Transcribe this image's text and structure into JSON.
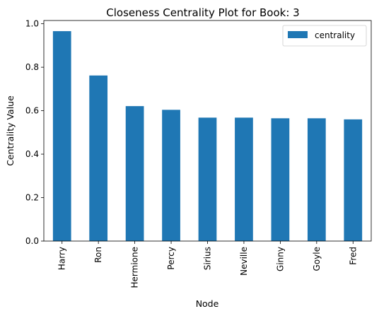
{
  "chart_data": {
    "type": "bar",
    "title": "Closeness Centrality Plot for Book: 3",
    "xlabel": "Node",
    "ylabel": "Centrality Value",
    "categories": [
      "Harry",
      "Ron",
      "Hermione",
      "Percy",
      "Sirius",
      "Neville",
      "Ginny",
      "Goyle",
      "Fred"
    ],
    "series": [
      {
        "name": "centrality",
        "values": [
          0.966,
          0.762,
          0.621,
          0.604,
          0.568,
          0.568,
          0.565,
          0.565,
          0.56
        ],
        "color": "#1f77b4"
      }
    ],
    "ylim": [
      0,
      1.015
    ],
    "yticks": [
      0.0,
      0.2,
      0.4,
      0.6,
      0.8,
      1.0
    ],
    "ytick_labels": [
      "0.0",
      "0.2",
      "0.4",
      "0.6",
      "0.8",
      "1.0"
    ],
    "grid": false,
    "legend": "top-right"
  }
}
